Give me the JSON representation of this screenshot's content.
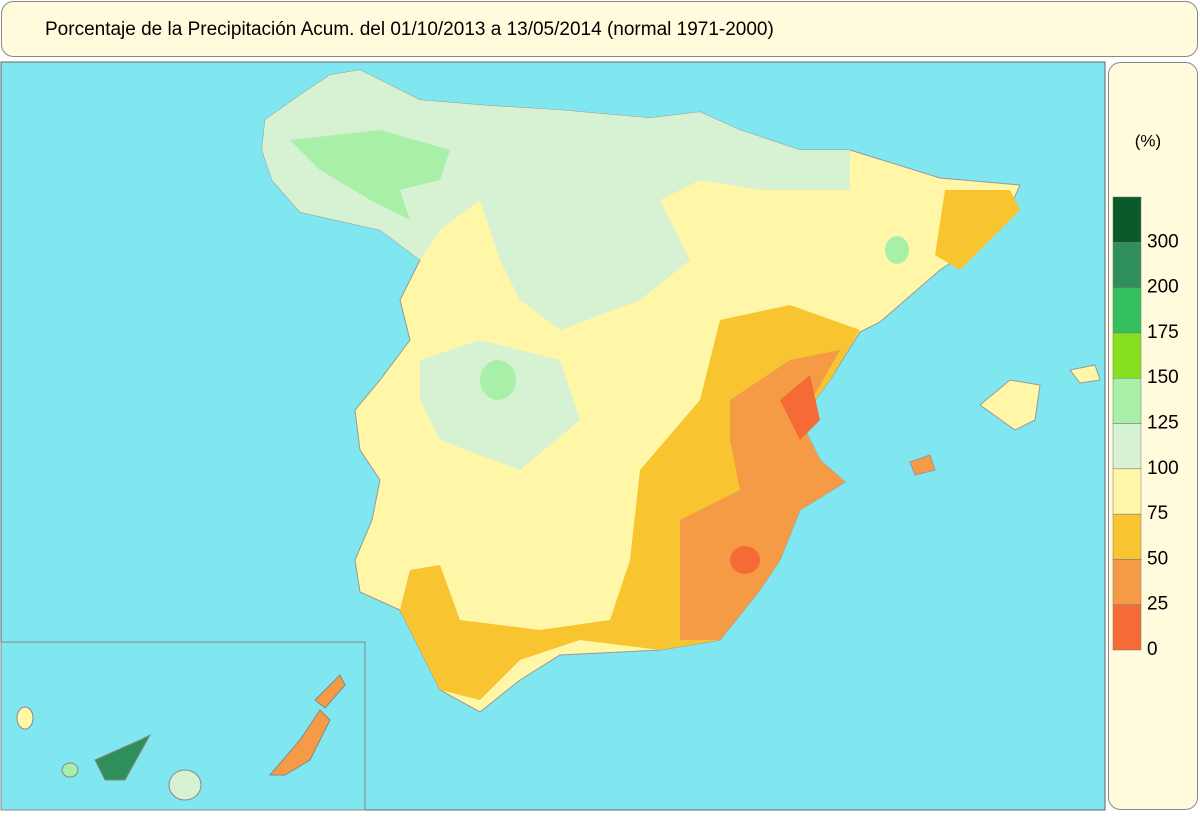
{
  "header": {
    "title": "Porcentaje de la Precipitación Acum. del 01/10/2013 a  13/05/2014  (normal 1971-2000)"
  },
  "legend": {
    "unit": "(%)",
    "ticks": [
      0,
      25,
      50,
      75,
      100,
      125,
      150,
      175,
      200,
      300
    ],
    "colors": [
      "#f56a35",
      "#f59a45",
      "#f8c530",
      "#fff6a8",
      "#d6f2d2",
      "#a8f0a8",
      "#86e020",
      "#35c060",
      "#2f8f5a",
      "#0a5a2a"
    ]
  }
}
